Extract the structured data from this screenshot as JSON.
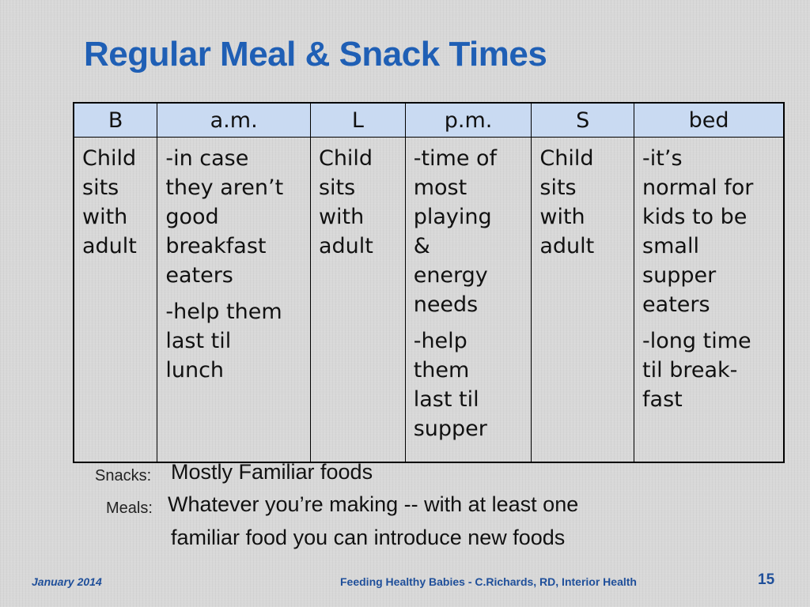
{
  "slide": {
    "title": "Regular Meal & Snack Times"
  },
  "table": {
    "headers": [
      "B",
      "a.m.",
      "L",
      "p.m.",
      "S",
      "bed"
    ],
    "cells": [
      [
        "Child\nsits\nwith\nadult"
      ],
      [
        "-in case\nthey aren’t\ngood\nbreakfast\neaters",
        "-help them\nlast til\nlunch"
      ],
      [
        "Child\nsits\nwith\nadult"
      ],
      [
        "-time of\nmost\nplaying\n&\nenergy\nneeds",
        "-help\nthem\nlast til\nsupper"
      ],
      [
        "Child\nsits\nwith\nadult"
      ],
      [
        "-it’s\nnormal for\nkids to be\nsmall\nsupper\neaters",
        "-long time\ntil break-\nfast"
      ]
    ]
  },
  "notes": {
    "snacks_label": "Snacks:",
    "snacks_text": "Mostly Familiar foods",
    "meals_label": "Meals:",
    "meals_text_line1": "Whatever you’re making -- with at least one",
    "meals_text_line2": "familiar food you can introduce new foods"
  },
  "footer": {
    "date": "January 2014",
    "center": "Feeding Healthy Babies - C.Richards, RD, Interior Health",
    "page_number": "15"
  }
}
